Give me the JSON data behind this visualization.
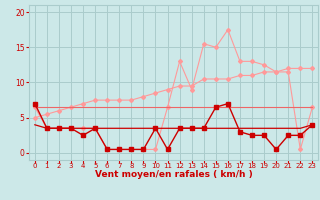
{
  "x": [
    0,
    1,
    2,
    3,
    4,
    5,
    6,
    7,
    8,
    9,
    10,
    11,
    12,
    13,
    14,
    15,
    16,
    17,
    18,
    19,
    20,
    21,
    22,
    23
  ],
  "line_rafales_spiky": [
    6.5,
    3.5,
    3.5,
    3.5,
    3.5,
    3.5,
    0.5,
    0.5,
    0.5,
    0.5,
    0.5,
    6.5,
    13.0,
    9.0,
    15.5,
    15.0,
    17.5,
    13.0,
    13.0,
    12.5,
    11.5,
    11.5,
    0.5,
    6.5
  ],
  "line_rafales_trend": [
    5.0,
    5.5,
    6.0,
    6.5,
    7.0,
    7.5,
    7.5,
    7.5,
    7.5,
    8.0,
    8.5,
    9.0,
    9.5,
    9.5,
    10.5,
    10.5,
    10.5,
    11.0,
    11.0,
    11.5,
    11.5,
    12.0,
    12.0,
    12.0
  ],
  "line_flat": [
    6.5,
    6.5,
    6.5,
    6.5,
    6.5,
    6.5,
    6.5,
    6.5,
    6.5,
    6.5,
    6.5,
    6.5,
    6.5,
    6.5,
    6.5,
    6.5,
    6.5,
    6.5,
    6.5,
    6.5,
    6.5,
    6.5,
    6.5,
    6.5
  ],
  "line_moyen_spiky": [
    7.0,
    3.5,
    3.5,
    3.5,
    2.5,
    3.5,
    0.5,
    0.5,
    0.5,
    0.5,
    3.5,
    0.5,
    3.5,
    3.5,
    3.5,
    6.5,
    7.0,
    3.0,
    2.5,
    2.5,
    0.5,
    2.5,
    2.5,
    4.0
  ],
  "line_moyen_trend": [
    4.0,
    3.5,
    3.5,
    3.5,
    3.5,
    3.5,
    3.5,
    3.5,
    3.5,
    3.5,
    3.5,
    3.5,
    3.5,
    3.5,
    3.5,
    3.5,
    3.5,
    3.5,
    3.5,
    3.5,
    3.5,
    3.5,
    3.5,
    4.0
  ],
  "bg_color": "#cce8e8",
  "grid_color": "#aacccc",
  "color_dark_red": "#cc0000",
  "color_light_pink": "#ff9999",
  "color_medium_pink": "#ee6666",
  "xlabel": "Vent moyen/en rafales ( km/h )",
  "ylim": [
    -1,
    21
  ],
  "xlim": [
    -0.5,
    23.5
  ],
  "yticks": [
    0,
    5,
    10,
    15,
    20
  ],
  "xticks": [
    0,
    1,
    2,
    3,
    4,
    5,
    6,
    7,
    8,
    9,
    10,
    11,
    12,
    13,
    14,
    15,
    16,
    17,
    18,
    19,
    20,
    21,
    22,
    23
  ],
  "tick_color": "#cc0000",
  "label_color": "#cc0000"
}
